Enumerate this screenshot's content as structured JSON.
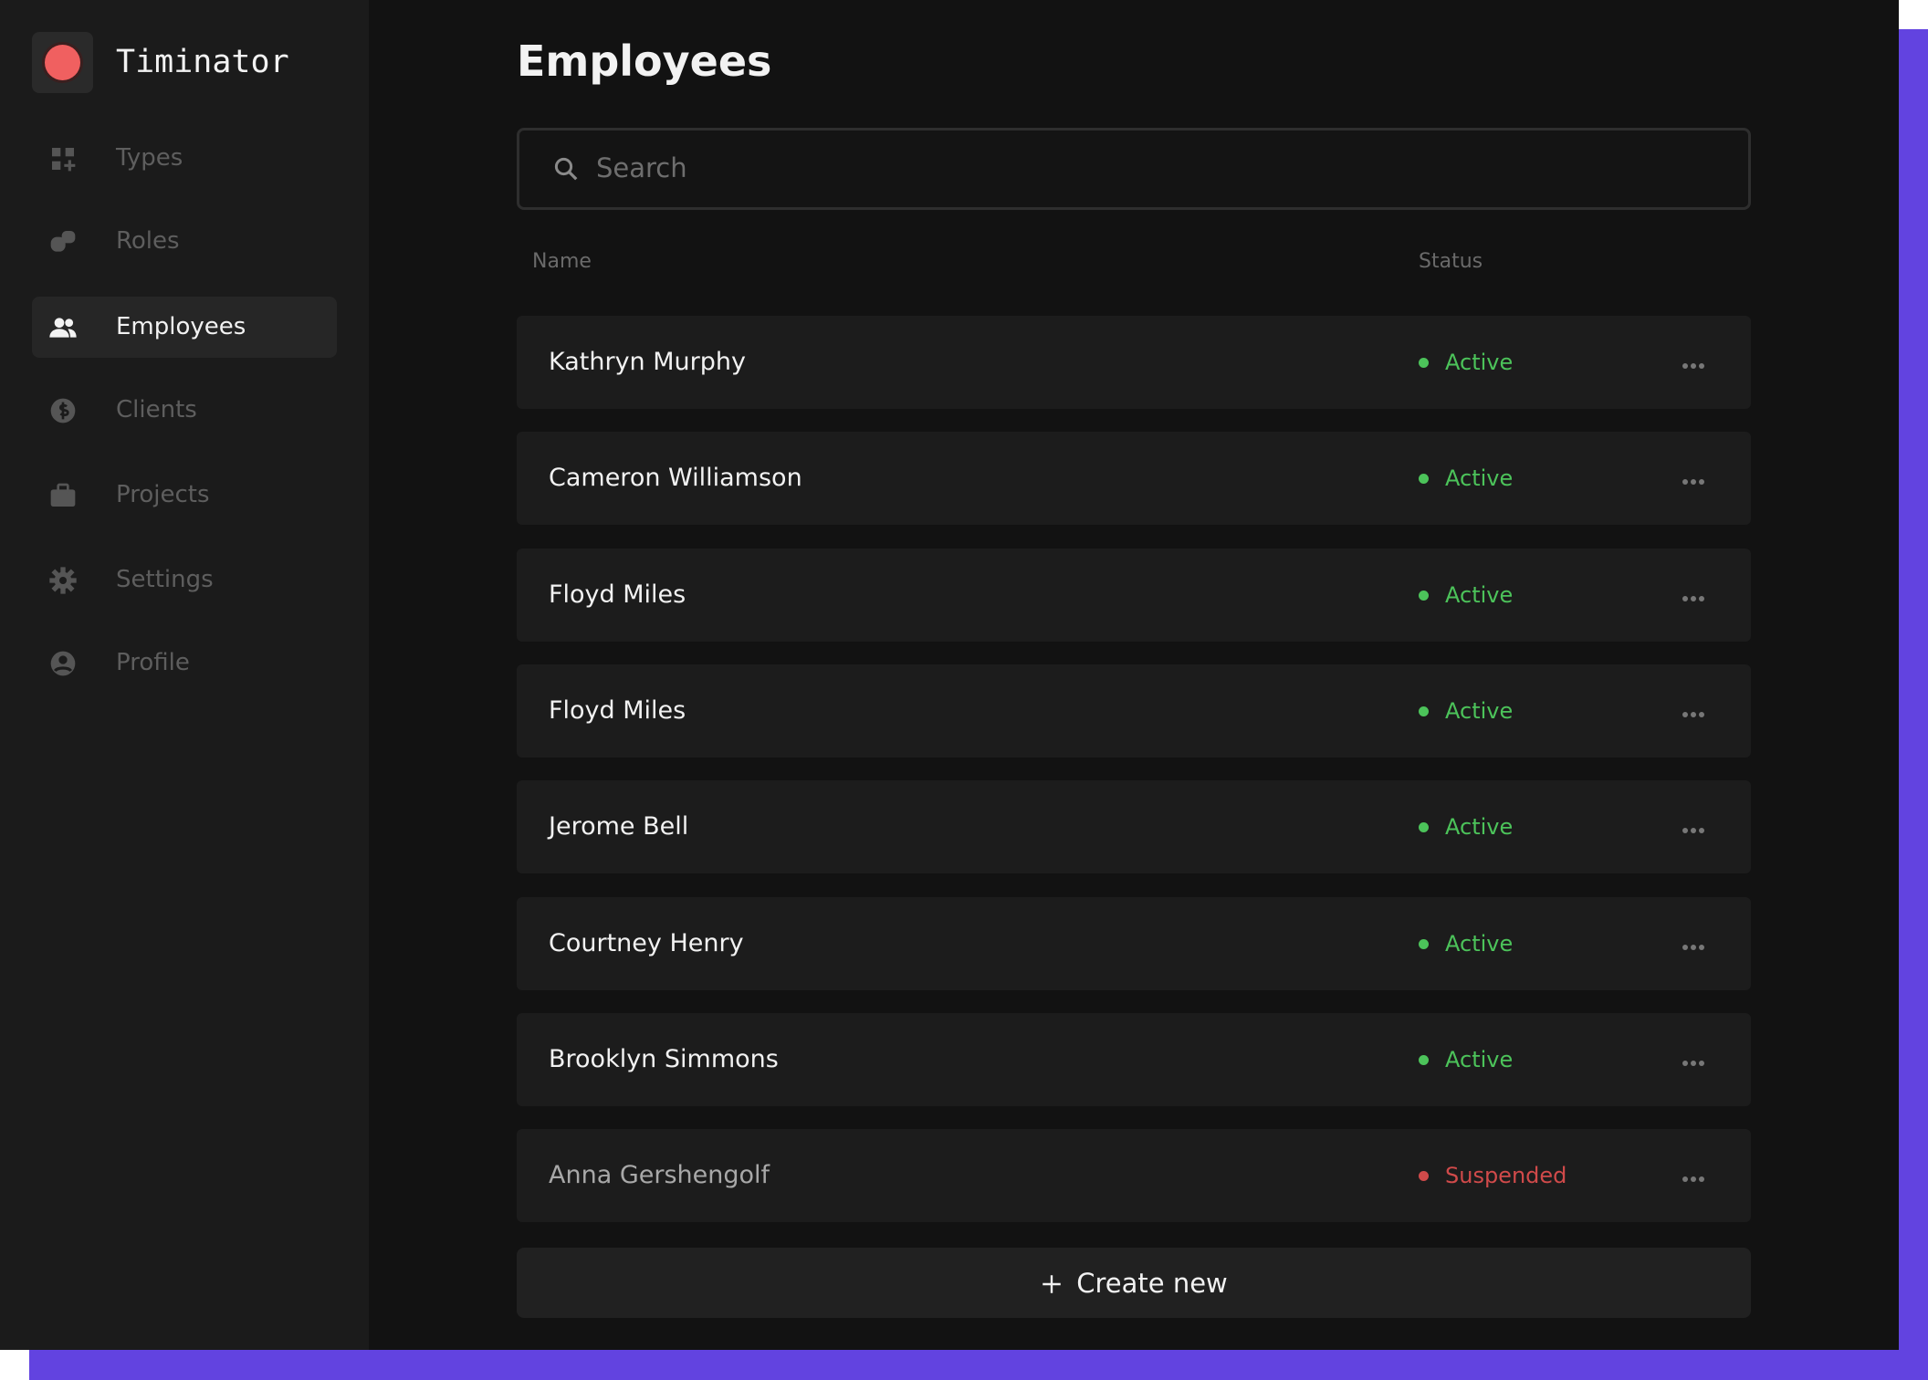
{
  "app": {
    "name": "Timinator"
  },
  "nav": [
    {
      "label": "Types",
      "active": false
    },
    {
      "label": "Roles",
      "active": false
    },
    {
      "label": "Employees",
      "active": true
    },
    {
      "label": "Clients",
      "active": false
    },
    {
      "label": "Projects",
      "active": false
    },
    {
      "label": "Settings",
      "active": false
    },
    {
      "label": "Profile",
      "active": false
    }
  ],
  "header": {
    "title": "Employees"
  },
  "search": {
    "placeholder": "Search"
  },
  "table": {
    "columns": [
      "Name",
      "Status"
    ],
    "rows": [
      {
        "name": "Kathryn Murphy",
        "status": "Active",
        "status_color": "#4cc35a",
        "name_color": "#f2f2f2"
      },
      {
        "name": "Cameron Williamson",
        "status": "Active",
        "status_color": "#4cc35a",
        "name_color": "#f2f2f2"
      },
      {
        "name": "Floyd Miles",
        "status": "Active",
        "status_color": "#4cc35a",
        "name_color": "#f2f2f2"
      },
      {
        "name": "Floyd Miles",
        "status": "Active",
        "status_color": "#4cc35a",
        "name_color": "#f2f2f2"
      },
      {
        "name": "Jerome Bell",
        "status": "Active",
        "status_color": "#4cc35a",
        "name_color": "#f2f2f2"
      },
      {
        "name": "Courtney Henry",
        "status": "Active",
        "status_color": "#4cc35a",
        "name_color": "#f2f2f2"
      },
      {
        "name": "Brooklyn Simmons",
        "status": "Active",
        "status_color": "#4cc35a",
        "name_color": "#f2f2f2"
      },
      {
        "name": "Anna Gershengolf",
        "status": "Suspended",
        "status_color": "#d04a4a",
        "name_color": "#a8a8a8"
      }
    ]
  },
  "button": {
    "label": "Create new"
  }
}
